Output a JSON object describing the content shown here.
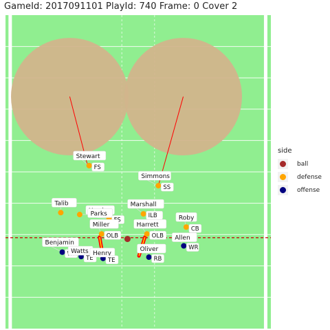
{
  "chart_data": {
    "type": "scatter",
    "title": "GameId: 2017091101  PlayId: 740  Frame: 0 Cover 2",
    "xlim": [
      0,
      53.3
    ],
    "ylim": [
      50,
      100
    ],
    "line_of_scrimmage_y": 64.5,
    "colors": {
      "field": "#90ee90",
      "zone": "#d2b48c",
      "ball": "#a52a2a",
      "defense": "#ffa500",
      "offense": "#000080",
      "scrimmage": "#cc0000"
    },
    "legend": {
      "title": "side",
      "placement": "right",
      "items": [
        {
          "key": "ball",
          "label": "ball",
          "color": "#a52a2a"
        },
        {
          "key": "defense",
          "label": "defense",
          "color": "#ffa500"
        },
        {
          "key": "offense",
          "label": "offense",
          "color": "#000080"
        }
      ]
    },
    "zones": [
      {
        "cx": 12.9,
        "cy": 87.0,
        "r": 11.8,
        "line_x2": 16.5,
        "line_y2": 76.0
      },
      {
        "cx": 35.7,
        "cy": 87.0,
        "r": 11.8,
        "line_x2": 30.7,
        "line_y2": 72.8
      }
    ],
    "players": [
      {
        "name": "Stewart",
        "pos": "FS",
        "side": "defense",
        "x": 16.8,
        "y": 76.0
      },
      {
        "name": "Simmons",
        "pos": "SS",
        "side": "defense",
        "x": 30.7,
        "y": 72.8
      },
      {
        "name": "Talib",
        "pos": "",
        "side": "defense",
        "x": 11.1,
        "y": 68.5
      },
      {
        "name": "Harris",
        "pos": "",
        "side": "defense",
        "x": 14.9,
        "y": 68.2
      },
      {
        "name": "Parks",
        "pos": "FS",
        "side": "defense",
        "x": 20.8,
        "y": 67.6
      },
      {
        "name": "Marshall",
        "pos": "ILB",
        "side": "defense",
        "x": 27.7,
        "y": 68.3
      },
      {
        "name": "Roby",
        "pos": "CB",
        "side": "defense",
        "x": 36.3,
        "y": 66.2
      },
      {
        "name": "Miller",
        "pos": "OLB",
        "side": "defense",
        "x": 19.3,
        "y": 65.1
      },
      {
        "name": "Harrett",
        "pos": "OLB",
        "side": "defense",
        "x": 28.4,
        "y": 65.1
      },
      {
        "name": "Benjamin",
        "pos": "WR",
        "side": "offense",
        "x": 11.4,
        "y": 62.2
      },
      {
        "name": "Watts",
        "pos": "TE",
        "side": "offense",
        "x": 15.2,
        "y": 61.5
      },
      {
        "name": "Henry",
        "pos": "TE",
        "side": "offense",
        "x": 19.6,
        "y": 61.2
      },
      {
        "name": "Oliver",
        "pos": "RB",
        "side": "offense",
        "x": 28.8,
        "y": 61.4
      },
      {
        "name": "Allen",
        "pos": "WR",
        "side": "offense",
        "x": 35.8,
        "y": 63.2
      }
    ],
    "ball": {
      "x": 24.5,
      "y": 64.3
    },
    "velocity_arrows": [
      {
        "x1": 18.9,
        "y1": 64.6,
        "x2": 19.6,
        "y2": 61.4
      },
      {
        "x1": 28.0,
        "y1": 64.6,
        "x2": 26.8,
        "y2": 61.6
      }
    ]
  }
}
